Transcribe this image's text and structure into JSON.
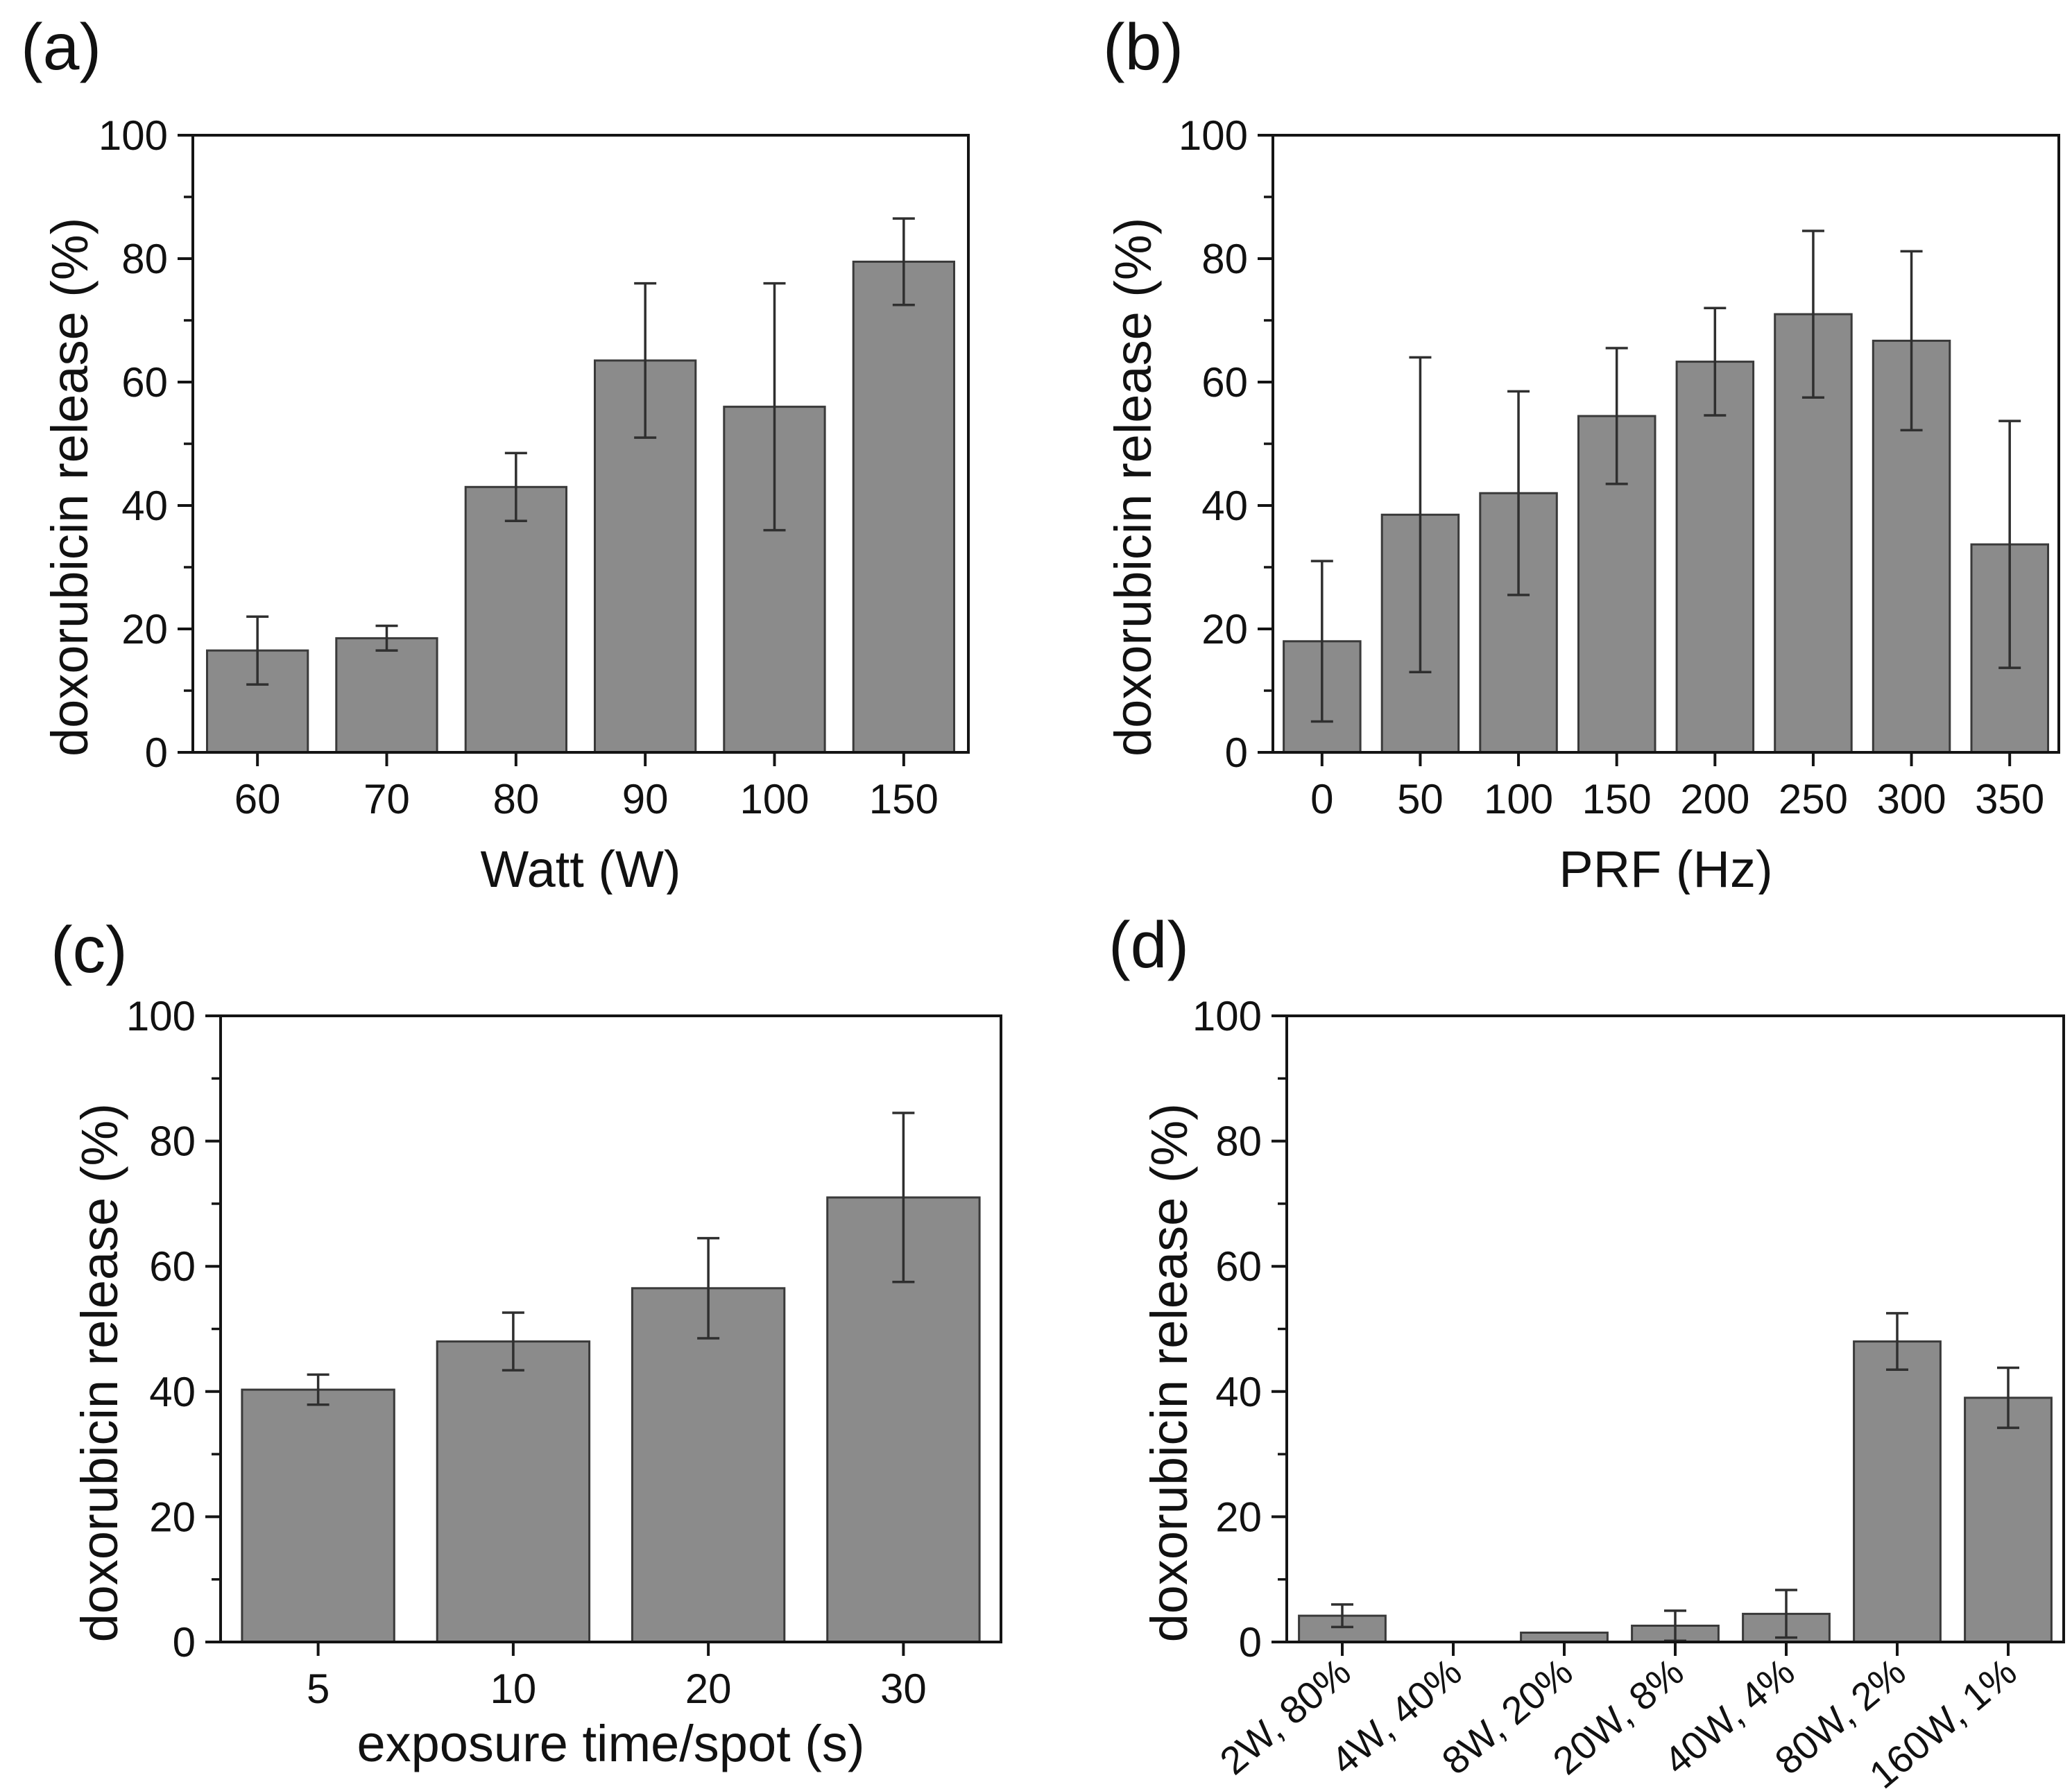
{
  "styles": {
    "background": "#ffffff",
    "bar_fill": "#8b8b8b",
    "bar_edge": "#3a3a3a",
    "axis_color": "#141414",
    "error_color": "#2f2f2f",
    "text_color": "#111111"
  },
  "chart_data": [
    {
      "panel": "(a)",
      "type": "bar",
      "title": "",
      "ylabel": "doxorubicin release (%)",
      "xlabel": "Watt (W)",
      "categories": [
        "60",
        "70",
        "80",
        "90",
        "100",
        "150"
      ],
      "values": [
        16.5,
        18.5,
        43,
        63.5,
        56,
        79.5
      ],
      "errors": [
        5.5,
        2,
        5.5,
        12.5,
        20,
        7
      ],
      "ylim": [
        0,
        100
      ],
      "yticks": [
        0,
        20,
        40,
        60,
        80,
        100
      ],
      "minor_ytick_step": 10,
      "grid": "off",
      "legend": "none",
      "rotated_xticklabels": false
    },
    {
      "panel": "(b)",
      "type": "bar",
      "title": "",
      "ylabel": "doxorubicin release (%)",
      "xlabel": "PRF (Hz)",
      "categories": [
        "0",
        "50",
        "100",
        "150",
        "200",
        "250",
        "300",
        "350"
      ],
      "values": [
        18,
        38.5,
        42,
        54.5,
        63.3,
        71,
        66.7,
        33.7
      ],
      "errors": [
        13,
        25.5,
        16.5,
        11,
        8.7,
        13.5,
        14.5,
        20
      ],
      "ylim": [
        0,
        100
      ],
      "yticks": [
        0,
        20,
        40,
        60,
        80,
        100
      ],
      "minor_ytick_step": 10,
      "grid": "off",
      "legend": "none",
      "rotated_xticklabels": false
    },
    {
      "panel": "(c)",
      "type": "bar",
      "title": "",
      "ylabel": "doxorubicin release (%)",
      "xlabel": "exposure time/spot (s)",
      "categories": [
        "5",
        "10",
        "20",
        "30"
      ],
      "values": [
        40.3,
        48,
        56.5,
        71
      ],
      "errors": [
        2.4,
        4.6,
        8,
        13.5
      ],
      "ylim": [
        0,
        100
      ],
      "yticks": [
        0,
        20,
        40,
        60,
        80,
        100
      ],
      "minor_ytick_step": 10,
      "grid": "off",
      "legend": "none",
      "rotated_xticklabels": false
    },
    {
      "panel": "(d)",
      "type": "bar",
      "title": "",
      "ylabel": "doxorubicin release (%)",
      "xlabel": "",
      "categories": [
        "2W, 80%",
        "4W, 40%",
        "8W, 20%",
        "20W, 8%",
        "40W, 4%",
        "80W, 2%",
        "160W, 1%"
      ],
      "values": [
        4.2,
        0,
        1.5,
        2.6,
        4.5,
        48,
        39
      ],
      "errors": [
        1.8,
        0,
        0,
        2.4,
        3.8,
        4.5,
        4.8
      ],
      "ylim": [
        0,
        100
      ],
      "yticks": [
        0,
        20,
        40,
        60,
        80,
        100
      ],
      "minor_ytick_step": 10,
      "grid": "off",
      "legend": "none",
      "rotated_xticklabels": true
    }
  ]
}
